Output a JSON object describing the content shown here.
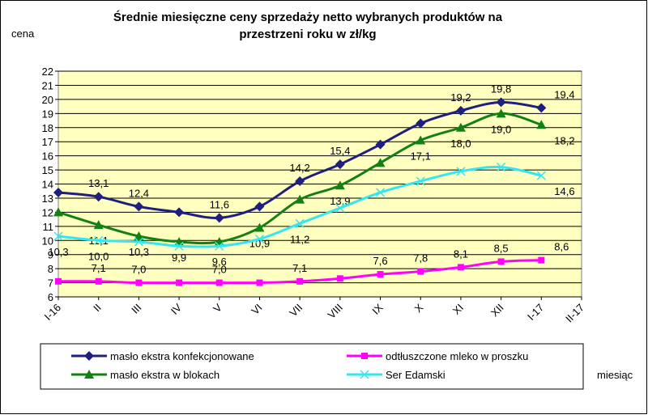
{
  "chart_data": {
    "type": "line",
    "title_lines": [
      "Średnie miesięczne ceny sprzedaży netto  wybranych produktów na",
      "przestrzeni roku w zł/kg"
    ],
    "y_label": "cena",
    "x_label": "miesiąc",
    "categories": [
      "I-16",
      "II",
      "III",
      "IV",
      "V",
      "VI",
      "VII",
      "VIII",
      "IX",
      "X",
      "XI",
      "XII",
      "I-17",
      "II-17"
    ],
    "ylim": [
      6,
      22
    ],
    "yticks": [
      6,
      7,
      8,
      9,
      10,
      11,
      12,
      13,
      14,
      15,
      16,
      17,
      18,
      19,
      20,
      21,
      22
    ],
    "grid": true,
    "series": [
      {
        "name": "masło ekstra konfekcjonowane",
        "color": "#1f1f80",
        "marker": "diamond",
        "label_side": "above",
        "values": [
          13.4,
          13.1,
          12.4,
          12.0,
          11.6,
          12.4,
          14.2,
          15.4,
          16.8,
          18.3,
          19.2,
          19.8,
          19.4,
          null
        ],
        "value_labels": [
          null,
          "13,1",
          "12,4",
          null,
          "11,6",
          null,
          "14,2",
          "15,4",
          null,
          null,
          "19,2",
          "19,8",
          "19,4",
          null
        ]
      },
      {
        "name": "odtłuszczone mleko w proszku",
        "color": "#ff00ff",
        "marker": "square",
        "label_side": "above",
        "values": [
          7.1,
          7.1,
          7.0,
          7.0,
          7.0,
          7.0,
          7.1,
          7.3,
          7.6,
          7.8,
          8.1,
          8.5,
          8.6,
          null
        ],
        "value_labels": [
          null,
          "7,1",
          "7,0",
          null,
          "7,0",
          null,
          "7,1",
          null,
          "7,6",
          "7,8",
          "8,1",
          "8,5",
          "8,6",
          null
        ]
      },
      {
        "name": "masło ekstra w blokach",
        "color": "#138013",
        "marker": "triangle",
        "label_side": "below",
        "values": [
          12.0,
          11.1,
          10.3,
          9.9,
          9.9,
          10.9,
          12.9,
          13.9,
          15.5,
          17.1,
          18.0,
          19.0,
          18.2,
          null
        ],
        "value_labels": [
          null,
          "11,1",
          "10,3",
          "9,9",
          null,
          "10,9",
          null,
          "13,9",
          null,
          "17,1",
          "18,0",
          "19,0",
          "18,2",
          null
        ]
      },
      {
        "name": "Ser Edamski",
        "color": "#33e6f0",
        "marker": "x",
        "label_side": "below",
        "values": [
          10.3,
          10.0,
          9.9,
          9.6,
          9.6,
          10.1,
          11.2,
          12.3,
          13.4,
          14.2,
          14.9,
          15.2,
          14.6,
          null
        ],
        "value_labels": [
          "10,3",
          "10,0",
          null,
          null,
          "9,6",
          null,
          "11,2",
          null,
          null,
          null,
          null,
          null,
          "14,6",
          null
        ]
      }
    ]
  }
}
